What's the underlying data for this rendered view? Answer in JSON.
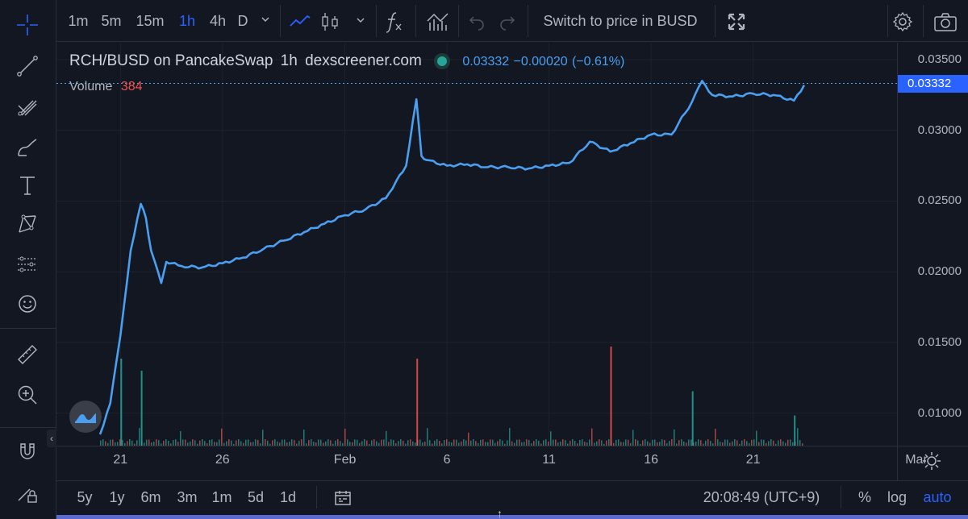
{
  "toolbar": {
    "intervals": [
      {
        "label": "1m",
        "active": false
      },
      {
        "label": "5m",
        "active": false
      },
      {
        "label": "15m",
        "active": false
      },
      {
        "label": "1h",
        "active": true
      },
      {
        "label": "4h",
        "active": false
      },
      {
        "label": "D",
        "active": false
      }
    ],
    "switch_price_label": "Switch to price in BUSD"
  },
  "legend": {
    "symbol": "RCH/BUSD on PancakeSwap",
    "interval": "1h",
    "source": "dexscreener.com",
    "last_price": "0.03332",
    "change": "−0.00020",
    "change_pct": "(−0.61%)",
    "volume_label": "Volume",
    "volume_value": "384"
  },
  "price_axis": {
    "ticks": [
      "0.03500",
      "0.03000",
      "0.02500",
      "0.02000",
      "0.01500",
      "0.01000"
    ],
    "current_price": "0.03332"
  },
  "time_axis": {
    "ticks": [
      "21",
      "26",
      "Feb",
      "6",
      "11",
      "16",
      "21",
      "Mar"
    ]
  },
  "bottom_bar": {
    "ranges": [
      "5y",
      "1y",
      "6m",
      "3m",
      "1m",
      "5d",
      "1d"
    ],
    "clock": "20:08:49 (UTC+9)",
    "percent_label": "%",
    "log_label": "log",
    "auto_label": "auto"
  },
  "colors": {
    "background": "#131722",
    "line": "#4a9ff0",
    "accent": "#2962ff",
    "volume_up": "#26a69a",
    "volume_down": "#ef5350",
    "grid": "#1e222d",
    "change_text": "#4a9ff0",
    "volume_value": "#ef5350"
  },
  "chart_data": {
    "type": "line",
    "title": "RCH/BUSD on PancakeSwap",
    "xlabel": "",
    "ylabel": "",
    "x_ticks": [
      "21",
      "26",
      "Feb",
      "6",
      "11",
      "16",
      "21",
      "Mar"
    ],
    "ylim": [
      0.0077,
      0.0362
    ],
    "x": [
      "Jan 20",
      "Jan 20 12h",
      "Jan 21",
      "Jan 21 12h",
      "Jan 22",
      "Jan 22 6h",
      "Jan 22 12h",
      "Jan 23",
      "Jan 23 6h",
      "Jan 23 12h",
      "Jan 24",
      "Jan 25",
      "Jan 26",
      "Jan 27",
      "Jan 28",
      "Jan 29",
      "Jan 30",
      "Jan 31",
      "Feb 1",
      "Feb 2",
      "Feb 3",
      "Feb 4",
      "Feb 4 12h",
      "Feb 4 18h",
      "Feb 5",
      "Feb 6",
      "Feb 7",
      "Feb 8",
      "Feb 9",
      "Feb 10",
      "Feb 11",
      "Feb 12",
      "Feb 13",
      "Feb 14",
      "Feb 15",
      "Feb 16",
      "Feb 17",
      "Feb 18",
      "Feb 18 12h",
      "Feb 19",
      "Feb 20",
      "Feb 21",
      "Feb 22",
      "Feb 23",
      "Feb 23 12h"
    ],
    "values": [
      0.0085,
      0.0107,
      0.0155,
      0.0215,
      0.0248,
      0.0238,
      0.0215,
      0.0192,
      0.0207,
      0.0206,
      0.0204,
      0.0203,
      0.0206,
      0.021,
      0.0216,
      0.0222,
      0.0228,
      0.0234,
      0.024,
      0.0244,
      0.0252,
      0.0275,
      0.0322,
      0.0282,
      0.0279,
      0.0275,
      0.0276,
      0.0274,
      0.0274,
      0.0273,
      0.0275,
      0.0277,
      0.0292,
      0.0285,
      0.0291,
      0.0297,
      0.0297,
      0.032,
      0.0335,
      0.0325,
      0.0324,
      0.0326,
      0.0325,
      0.0321,
      0.0332
    ],
    "volume": {
      "label": "Volume",
      "last": 384,
      "max_x": "Feb 14",
      "spikes": [
        {
          "x": "Jan 21",
          "value": 0.72,
          "dir": "up"
        },
        {
          "x": "Jan 22",
          "value": 0.62,
          "dir": "up"
        },
        {
          "x": "Feb 4 12h",
          "value": 0.72,
          "dir": "down"
        },
        {
          "x": "Feb 14",
          "value": 0.82,
          "dir": "down"
        },
        {
          "x": "Feb 18",
          "value": 0.45,
          "dir": "up"
        },
        {
          "x": "Feb 23",
          "value": 0.25,
          "dir": "up"
        }
      ]
    }
  }
}
